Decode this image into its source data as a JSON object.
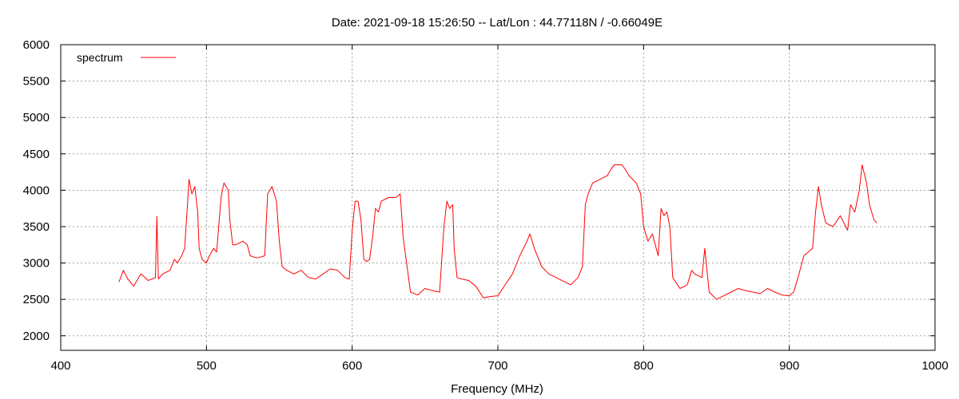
{
  "chart_data": {
    "type": "line",
    "title": "Date: 2021-09-18 15:26:50  --  Lat/Lon : 44.77118N / -0.66049E",
    "xlabel": "Frequency (MHz)",
    "ylabel": "",
    "xlim": [
      400,
      1000
    ],
    "ylim": [
      1800,
      6000
    ],
    "xticks": [
      400,
      500,
      600,
      700,
      800,
      900,
      1000
    ],
    "yticks": [
      2000,
      2500,
      3000,
      3500,
      4000,
      4500,
      5000,
      5500,
      6000
    ],
    "grid": true,
    "legend": {
      "position": "top-left",
      "entries": [
        "spectrum"
      ]
    },
    "series": [
      {
        "name": "spectrum",
        "color": "#ff0000",
        "x": [
          440,
          443,
          446,
          450,
          455,
          460,
          465,
          466,
          467,
          470,
          475,
          478,
          480,
          483,
          485,
          487,
          488,
          490,
          492,
          494,
          495,
          497,
          500,
          502,
          505,
          507,
          510,
          512,
          515,
          516,
          518,
          520,
          525,
          528,
          530,
          533,
          535,
          540,
          542,
          545,
          548,
          550,
          552,
          555,
          560,
          565,
          570,
          575,
          580,
          585,
          590,
          595,
          598,
          600,
          602,
          604,
          606,
          608,
          610,
          612,
          614,
          616,
          618,
          620,
          625,
          630,
          633,
          635,
          638,
          640,
          645,
          650,
          655,
          660,
          663,
          665,
          667,
          669,
          670,
          672,
          675,
          680,
          685,
          690,
          695,
          700,
          705,
          710,
          715,
          720,
          722,
          725,
          730,
          735,
          740,
          745,
          750,
          755,
          758,
          760,
          762,
          765,
          770,
          775,
          778,
          780,
          785,
          787,
          790,
          795,
          798,
          800,
          803,
          806,
          810,
          812,
          814,
          816,
          818,
          820,
          825,
          830,
          833,
          835,
          840,
          842,
          845,
          850,
          855,
          860,
          865,
          870,
          875,
          880,
          885,
          890,
          895,
          900,
          903,
          906,
          910,
          913,
          916,
          918,
          920,
          922,
          925,
          930,
          935,
          940,
          942,
          945,
          948,
          950,
          953,
          955,
          958,
          960
        ],
        "y": [
          2740,
          2900,
          2780,
          2680,
          2850,
          2760,
          2800,
          3640,
          2780,
          2850,
          2900,
          3050,
          3000,
          3100,
          3200,
          3800,
          4150,
          3950,
          4050,
          3700,
          3200,
          3050,
          3000,
          3100,
          3200,
          3150,
          3900,
          4100,
          4000,
          3600,
          3250,
          3250,
          3300,
          3250,
          3100,
          3080,
          3070,
          3100,
          3950,
          4050,
          3850,
          3300,
          2950,
          2900,
          2850,
          2900,
          2800,
          2780,
          2850,
          2920,
          2900,
          2800,
          2780,
          3450,
          3850,
          3850,
          3600,
          3050,
          3020,
          3050,
          3350,
          3750,
          3700,
          3850,
          3900,
          3900,
          3950,
          3350,
          2900,
          2600,
          2560,
          2650,
          2620,
          2600,
          3500,
          3850,
          3750,
          3800,
          3200,
          2800,
          2780,
          2760,
          2680,
          2520,
          2540,
          2550,
          2700,
          2850,
          3100,
          3300,
          3400,
          3200,
          2950,
          2850,
          2800,
          2750,
          2700,
          2800,
          2950,
          3800,
          3950,
          4100,
          4150,
          4200,
          4300,
          4350,
          4350,
          4300,
          4200,
          4100,
          3950,
          3500,
          3300,
          3400,
          3100,
          3750,
          3650,
          3700,
          3500,
          2800,
          2650,
          2700,
          2900,
          2850,
          2800,
          3200,
          2600,
          2500,
          2550,
          2600,
          2650,
          2620,
          2600,
          2580,
          2650,
          2600,
          2560,
          2550,
          2600,
          2800,
          3100,
          3150,
          3200,
          3700,
          4050,
          3800,
          3550,
          3500,
          3650,
          3450,
          3800,
          3700,
          4000,
          4350,
          4100,
          3800,
          3600,
          3550
        ]
      }
    ]
  }
}
